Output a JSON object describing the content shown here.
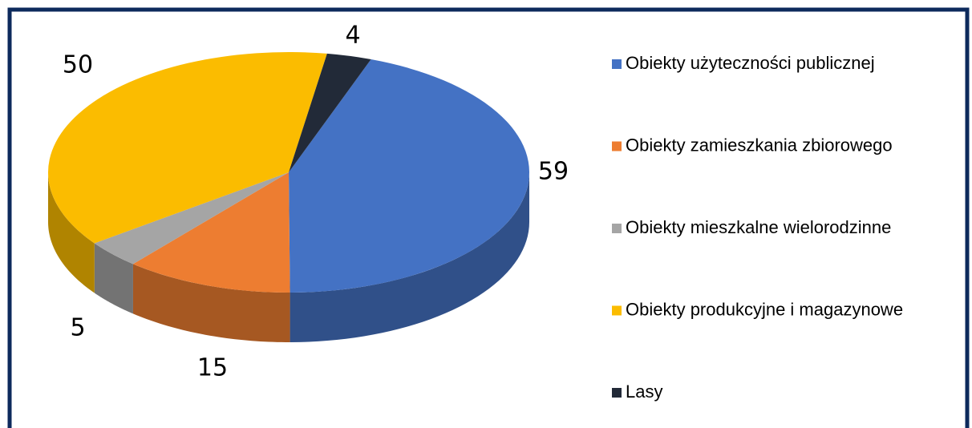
{
  "chart_data": {
    "type": "pie3d",
    "categories": [
      "Obiekty użyteczności publicznej",
      "Obiekty zamieszkania zbiorowego",
      "Obiekty mieszkalne wielorodzinne",
      "Obiekty produkcyjne i magazynowe",
      "Lasy"
    ],
    "values": [
      59,
      15,
      5,
      50,
      4
    ],
    "colors": [
      "#4472c4",
      "#ed7d31",
      "#a5a5a5",
      "#fbbc00",
      "#222a38"
    ],
    "legend": "right"
  }
}
